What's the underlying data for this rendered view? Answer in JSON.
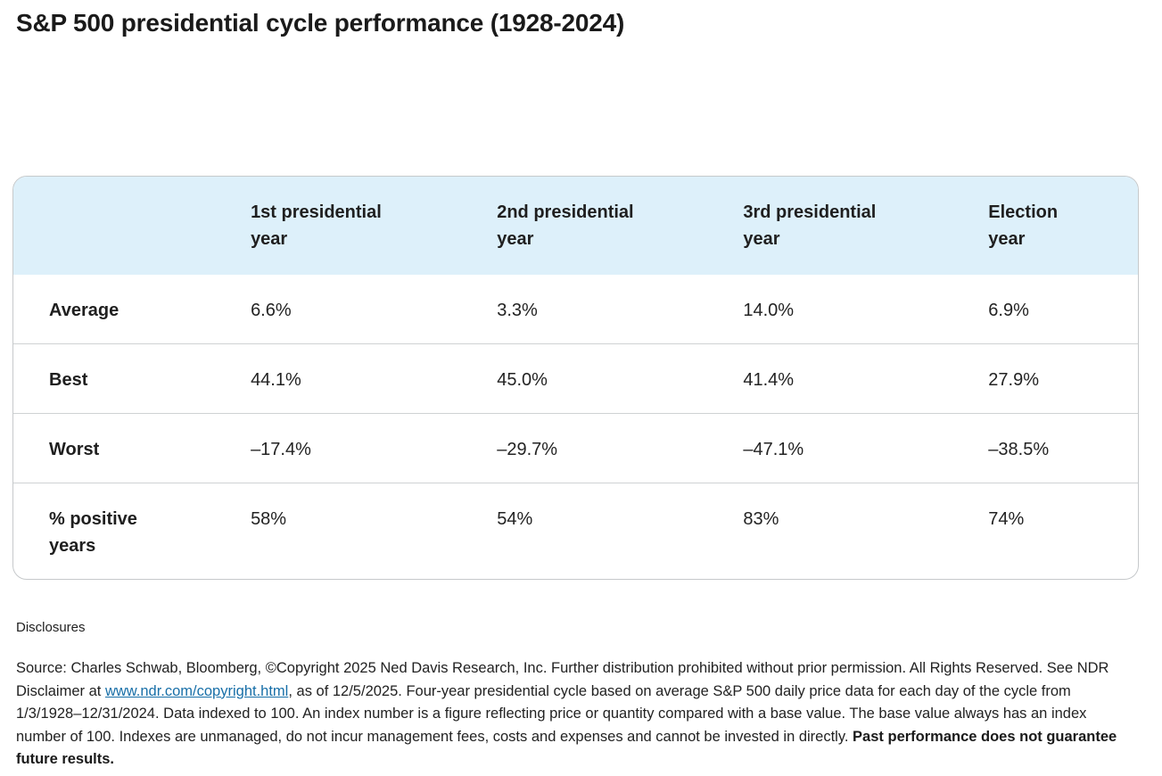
{
  "page": {
    "title": "S&P 500 presidential cycle performance (1928-2024)"
  },
  "table": {
    "columns": [
      "",
      "1st presidential year",
      "2nd presidential year",
      "3rd presidential year",
      "Election year"
    ],
    "rows": [
      {
        "label": "Average",
        "values": [
          "6.6%",
          "3.3%",
          "14.0%",
          "6.9%"
        ]
      },
      {
        "label": "Best",
        "values": [
          "44.1%",
          "45.0%",
          "41.4%",
          "27.9%"
        ]
      },
      {
        "label": "Worst",
        "values": [
          "–17.4%",
          "–29.7%",
          "–47.1%",
          "–38.5%"
        ]
      },
      {
        "label": "% positive years",
        "values": [
          "58%",
          "54%",
          "83%",
          "74%"
        ]
      }
    ],
    "header_bg_color": "#ddf0fa",
    "border_color": "#c6c9cb"
  },
  "chart_data": {
    "type": "table",
    "title": "S&P 500 presidential cycle performance (1928-2024)",
    "categories": [
      "1st presidential year",
      "2nd presidential year",
      "3rd presidential year",
      "Election year"
    ],
    "series": [
      {
        "name": "Average",
        "values": [
          6.6,
          3.3,
          14.0,
          6.9
        ]
      },
      {
        "name": "Best",
        "values": [
          44.1,
          45.0,
          41.4,
          27.9
        ]
      },
      {
        "name": "Worst",
        "values": [
          -17.4,
          -29.7,
          -47.1,
          -38.5
        ]
      },
      {
        "name": "% positive years",
        "values": [
          58,
          54,
          83,
          74
        ]
      }
    ],
    "unit": "%"
  },
  "disclosures": {
    "heading": "Disclosures",
    "source_prefix": "Source: Charles Schwab, Bloomberg, ©Copyright 2025 Ned Davis Research, Inc. Further distribution prohibited without prior permission. All Rights Reserved. See NDR Disclaimer at ",
    "link_text": "www.ndr.com/copyright.html",
    "source_suffix": ", as of 12/5/2025. Four-year presidential cycle based on average S&P 500 daily price data for each day of the cycle from 1/3/1928–12/31/2024. Data indexed to 100. An index number is a figure reflecting price or quantity compared with a base value. The base value always has an index number of 100. Indexes are unmanaged, do not incur management fees, costs and expenses and cannot be invested in directly. ",
    "bold_sentence": "Past performance does not guarantee future results.",
    "link_color": "#186fa8"
  }
}
